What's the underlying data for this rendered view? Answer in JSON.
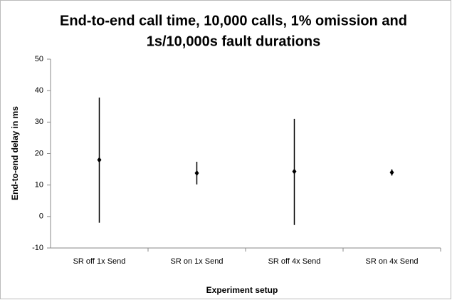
{
  "chart_data": {
    "type": "error_bar",
    "title": [
      "End-to-end call time, 10,000 calls, 1% omission and",
      "1s/10,000s fault durations"
    ],
    "x_label": "Experiment setup",
    "y_label": "End-to-end delay in ms",
    "categories": [
      "SR off 1x Send",
      "SR on 1x Send",
      "SR off 4x Send",
      "SR on 4x Send"
    ],
    "values": [
      18,
      13.8,
      14.3,
      14
    ],
    "low": [
      -2,
      10.2,
      -2.7,
      13
    ],
    "high": [
      37.8,
      17.4,
      31,
      15
    ],
    "color": "#000000",
    "ylim": [
      -10,
      50
    ],
    "yticks": [
      -10,
      0,
      10,
      20,
      30,
      40,
      50
    ],
    "grid": false
  }
}
